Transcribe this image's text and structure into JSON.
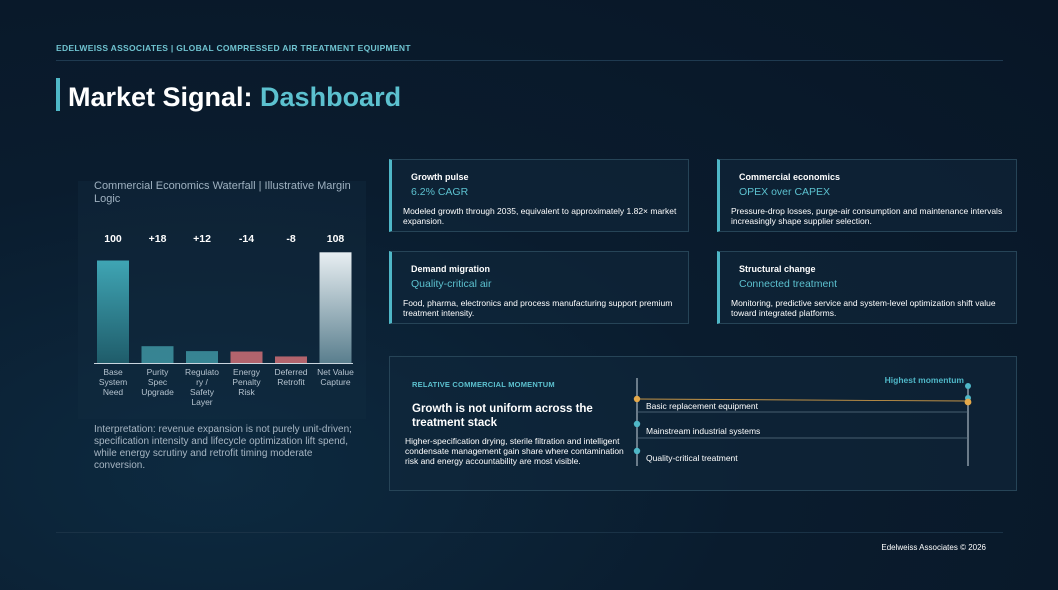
{
  "header": {
    "topline": "EDELWEISS ASSOCIATES | GLOBAL COMPRESSED AIR TREATMENT EQUIPMENT",
    "title_main": "Market Signal: ",
    "title_accent": "Dashboard"
  },
  "chart_data": {
    "type": "bar",
    "subtype": "waterfall",
    "title": "Commercial Economics Waterfall | Illustrative Margin Logic",
    "categories": [
      "Base System Need",
      "Purity Spec Upgrade",
      "Regulatory / Safety Layer",
      "Energy Penalty Risk",
      "Deferred Retrofit",
      "Net Value Capture"
    ],
    "category_labels": [
      [
        "Base",
        "System",
        "Need"
      ],
      [
        "Purity",
        "Spec",
        "Upgrade"
      ],
      [
        "Regulato",
        "ry /",
        "Safety",
        "Layer"
      ],
      [
        "Energy",
        "Penalty",
        "Risk"
      ],
      [
        "Deferred",
        "Retrofit"
      ],
      [
        "Net Value",
        "Capture"
      ]
    ],
    "values": [
      100,
      18,
      12,
      -14,
      -8,
      108
    ],
    "value_labels": [
      "100",
      "+18",
      "+12",
      "-14",
      "-8",
      "108"
    ],
    "kinds": [
      "total",
      "delta",
      "delta",
      "delta",
      "delta",
      "total"
    ],
    "colors": {
      "base": "#3fa5b4",
      "increase": "#3c8f9c",
      "decrease": "#c46a72",
      "net": "#e8eef2"
    }
  },
  "interpretation": "Interpretation: revenue expansion is not purely unit-driven; specification intensity and lifecycle optimization lift spend, while energy scrutiny and retrofit timing moderate conversion.",
  "cards": [
    {
      "key": "Growth pulse",
      "value": "6.2% CAGR",
      "desc": "Modeled growth through 2035, equivalent to approximately 1.82× market expansion."
    },
    {
      "key": "Commercial economics",
      "value": "OPEX over CAPEX",
      "desc": "Pressure-drop losses, purge-air consumption and maintenance intervals increasingly shape supplier selection."
    },
    {
      "key": "Demand migration",
      "value": "Quality-critical air",
      "desc": "Food, pharma, electronics and process manufacturing support premium treatment intensity."
    },
    {
      "key": "Structural change",
      "value": "Connected treatment",
      "desc": "Monitoring, predictive service and system-level optimization shift value toward integrated platforms."
    }
  ],
  "momentum": {
    "label": "RELATIVE COMMERCIAL MOMENTUM",
    "headline": "Growth is not uniform across the treatment stack",
    "body": "Higher-specification drying, sterile filtration and intelligent condensate management gain share where contamination risk and energy accountability are most visible.",
    "axis_label": "Highest momentum",
    "rows": [
      "Basic replacement equipment",
      "Mainstream industrial systems",
      "Quality-critical treatment"
    ],
    "colors": {
      "marker_teal": "#4fb7c7",
      "marker_amber": "#e5a94a"
    }
  },
  "footer": "Edelweiss Associates © 2026"
}
